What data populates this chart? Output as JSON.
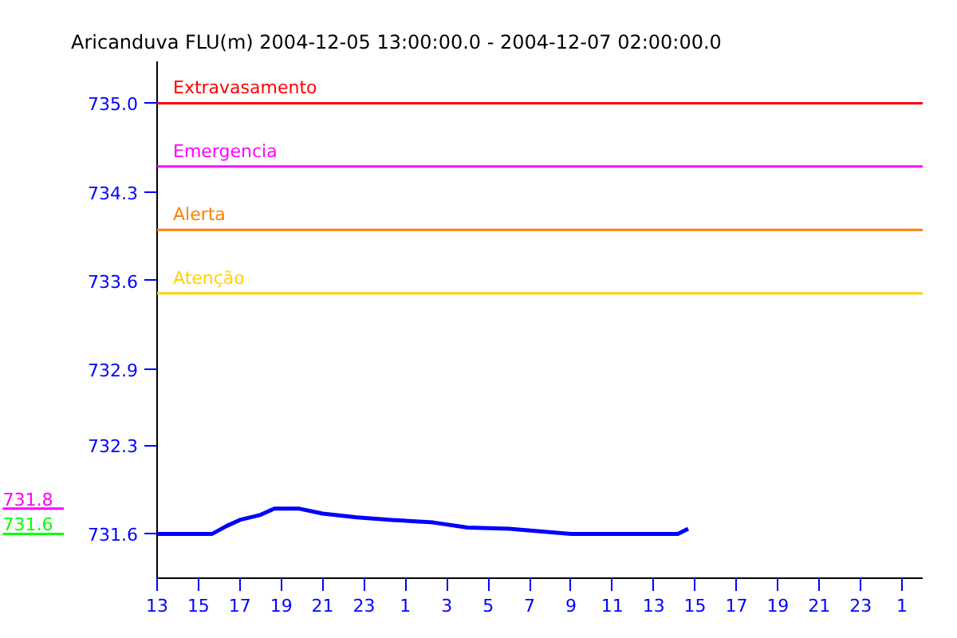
{
  "chart_data": {
    "type": "line",
    "title": "Aricanduva FLU(m) 2004-12-05 13:00:00.0 - 2004-12-07 02:00:00.0",
    "x": [
      "2004-12-05T13:00",
      "2004-12-05T15:40",
      "2004-12-05T16:20",
      "2004-12-05T17:00",
      "2004-12-05T18:00",
      "2004-12-05T18:40",
      "2004-12-05T19:50",
      "2004-12-05T21:00",
      "2004-12-05T22:40",
      "2004-12-06T00:20",
      "2004-12-06T02:20",
      "2004-12-06T04:00",
      "2004-12-06T06:00",
      "2004-12-06T07:30",
      "2004-12-06T09:00",
      "2004-12-06T14:10",
      "2004-12-06T14:40"
    ],
    "series": [
      {
        "color": "#0000ff",
        "values": [
          731.6,
          731.6,
          731.66,
          731.71,
          731.75,
          731.8,
          731.8,
          731.76,
          731.73,
          731.71,
          731.69,
          731.65,
          731.64,
          731.62,
          731.6,
          731.6,
          731.64
        ]
      }
    ],
    "xlim": [
      "2004-12-05T13:00",
      "2004-12-07T02:00"
    ],
    "xticks": [
      {
        "value": "2004-12-05T13:00",
        "label": "13"
      },
      {
        "value": "2004-12-05T15:00",
        "label": "15"
      },
      {
        "value": "2004-12-05T17:00",
        "label": "17"
      },
      {
        "value": "2004-12-05T19:00",
        "label": "19"
      },
      {
        "value": "2004-12-05T21:00",
        "label": "21"
      },
      {
        "value": "2004-12-05T23:00",
        "label": "23"
      },
      {
        "value": "2004-12-06T01:00",
        "label": "1"
      },
      {
        "value": "2004-12-06T03:00",
        "label": "3"
      },
      {
        "value": "2004-12-06T05:00",
        "label": "5"
      },
      {
        "value": "2004-12-06T07:00",
        "label": "7"
      },
      {
        "value": "2004-12-06T09:00",
        "label": "9"
      },
      {
        "value": "2004-12-06T11:00",
        "label": "11"
      },
      {
        "value": "2004-12-06T13:00",
        "label": "13"
      },
      {
        "value": "2004-12-06T15:00",
        "label": "15"
      },
      {
        "value": "2004-12-06T17:00",
        "label": "17"
      },
      {
        "value": "2004-12-06T19:00",
        "label": "19"
      },
      {
        "value": "2004-12-06T21:00",
        "label": "21"
      },
      {
        "value": "2004-12-06T23:00",
        "label": "23"
      },
      {
        "value": "2004-12-07T01:00",
        "label": "1"
      }
    ],
    "ylim": [
      731.25,
      735.33
    ],
    "yticks": [
      731.6,
      732.3,
      732.9,
      733.6,
      734.3,
      {
        "value": 735,
        "label": "735.0"
      }
    ],
    "ref_lines": [
      {
        "axis": "y",
        "value": 735,
        "label": "Extravasamento",
        "color": "#ff0000"
      },
      {
        "axis": "y",
        "value": 734.5,
        "label": "Emergencia",
        "color": "#ff00ff"
      },
      {
        "axis": "y",
        "value": 734.0,
        "label": "Alerta",
        "color": "#ff8000"
      },
      {
        "axis": "y",
        "value": 733.5,
        "label": "Atenção",
        "color": "#ffd200"
      },
      {
        "axis": "y",
        "value": 731.8,
        "label": "731.8",
        "color": "#ff00ff"
      },
      {
        "axis": "y",
        "value": 731.6,
        "label": "731.6",
        "color": "#00ff00"
      }
    ],
    "grid": false,
    "line_style": "solid"
  }
}
